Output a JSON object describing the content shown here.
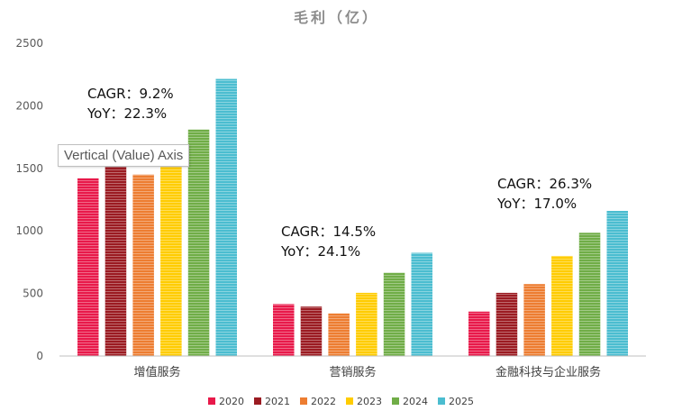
{
  "chart_data": {
    "type": "bar",
    "title": "毛利（亿）",
    "categories": [
      "增值服务",
      "营销服务",
      "金融科技与企业服务"
    ],
    "series": [
      {
        "name": "2020",
        "color": "#e8194a",
        "values": [
          1420,
          415,
          355
        ]
      },
      {
        "name": "2021",
        "color": "#9b1b22",
        "values": [
          1525,
          395,
          505
        ]
      },
      {
        "name": "2022",
        "color": "#ed7d31",
        "values": [
          1450,
          340,
          575
        ]
      },
      {
        "name": "2023",
        "color": "#ffcc00",
        "values": [
          1600,
          505,
          800
        ]
      },
      {
        "name": "2024",
        "color": "#70ad47",
        "values": [
          1810,
          665,
          985
        ]
      },
      {
        "name": "2025",
        "color": "#4bbdd0",
        "values": [
          2215,
          825,
          1160
        ]
      }
    ],
    "ylim": [
      0,
      2500
    ],
    "yticks": [
      "0",
      "500",
      "1000",
      "1500",
      "2000",
      "2500"
    ],
    "grid": false,
    "legend_position": "bottom",
    "annotations": [
      {
        "cagr": "CAGR：9.2%",
        "yoy": "YoY：22.3%"
      },
      {
        "cagr": "CAGR：14.5%",
        "yoy": "YoY：24.1%"
      },
      {
        "cagr": "CAGR：26.3%",
        "yoy": "YoY：17.0%"
      }
    ]
  },
  "tooltip": "Vertical (Value) Axis"
}
